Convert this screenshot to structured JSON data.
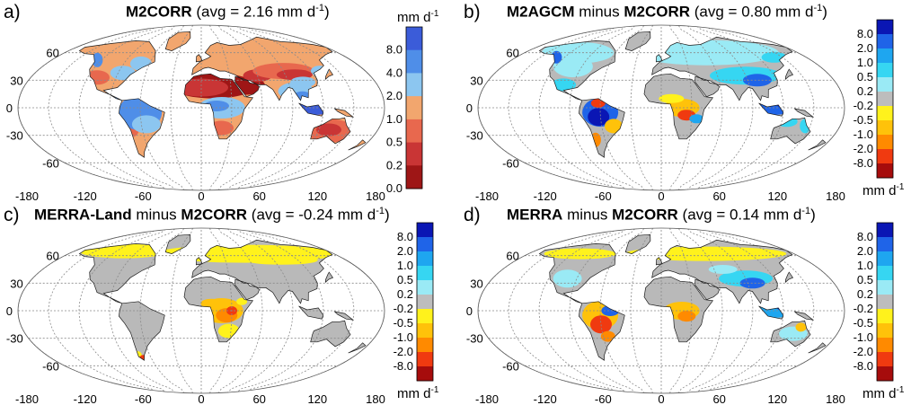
{
  "colors": {
    "land_gray": "#b9b9b9",
    "ocean": "#ffffff",
    "grid": "#8a8a8a",
    "coast": "#1a1a1a"
  },
  "ticks": {
    "lat": [
      "60",
      "30",
      "0",
      "-30",
      "-60"
    ],
    "lon": [
      "-180",
      "-120",
      "-60",
      "0",
      "60",
      "120",
      "180"
    ]
  },
  "unit": {
    "main": "mm d",
    "exp": "-1"
  },
  "panels": {
    "a": {
      "letter": "a)",
      "title_bold": "M2CORR",
      "title_rest": " (avg = 2.16 mm d",
      "title_exp": "-1",
      "title_close": ")",
      "colorbar": {
        "labels": [
          "8.0",
          "4.0",
          "2.0",
          "1.0",
          "0.5",
          "0.2",
          "0.0"
        ],
        "colors": [
          "#3b5cd9",
          "#4f8ee8",
          "#8cc6f0",
          "#f2a66e",
          "#e8684e",
          "#c93535",
          "#9e1616"
        ]
      }
    },
    "b": {
      "letter": "b)",
      "title_bold1": "M2AGCM",
      "title_mid": " minus ",
      "title_bold2": "M2CORR",
      "title_rest": "  (avg = 0.80 mm d",
      "title_exp": "-1",
      "title_close": ")"
    },
    "c": {
      "letter": "c)",
      "title_bold1": "MERRA-Land",
      "title_mid": " minus ",
      "title_bold2": "M2CORR",
      "title_rest": "  (avg = -0.24 mm d",
      "title_exp": "-1",
      "title_close": ")"
    },
    "d": {
      "letter": "d)",
      "title_bold1": "MERRA",
      "title_mid": " minus ",
      "title_bold2": "M2CORR",
      "title_rest": "  (avg = 0.14 mm d",
      "title_exp": "-1",
      "title_close": ")"
    }
  },
  "diff_colorbar": {
    "labels": [
      "8.0",
      "2.0",
      "1.0",
      "0.5",
      "0.2",
      "-0.2",
      "-0.5",
      "-1.0",
      "-2.0",
      "-8.0"
    ],
    "colors": [
      "#0a16b4",
      "#1f64e8",
      "#1ea6f0",
      "#36d6f2",
      "#9aeaf5",
      "#bdbdbd",
      "#fff21c",
      "#ffc20a",
      "#ff8a00",
      "#f03a10",
      "#a60c0c"
    ]
  }
}
